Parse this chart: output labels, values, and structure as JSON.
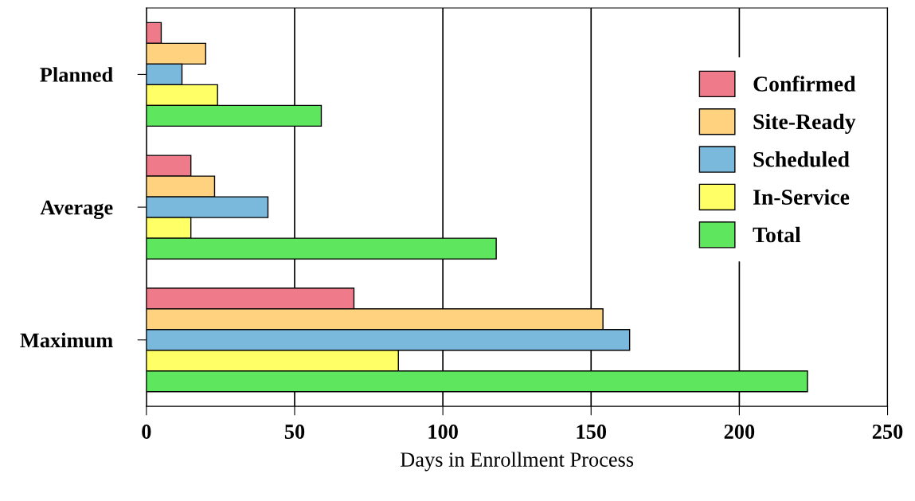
{
  "chart_data": {
    "type": "bar",
    "orientation": "horizontal",
    "xlabel": "Days in Enrollment Process",
    "categories": [
      "Planned",
      "Average",
      "Maximum"
    ],
    "series": [
      {
        "name": "Confirmed",
        "color": "#ee7a8a",
        "values": [
          5,
          15,
          70
        ]
      },
      {
        "name": "Site-Ready",
        "color": "#ffd280",
        "values": [
          20,
          23,
          154
        ]
      },
      {
        "name": "Scheduled",
        "color": "#7ab8dc",
        "values": [
          12,
          41,
          163
        ]
      },
      {
        "name": "In-Service",
        "color": "#ffff66",
        "values": [
          24,
          15,
          85
        ]
      },
      {
        "name": "Total",
        "color": "#5ee65e",
        "values": [
          59,
          118,
          223
        ]
      }
    ],
    "xlim": [
      0,
      250
    ],
    "xticks": [
      0,
      50,
      100,
      150,
      200,
      250
    ],
    "grid": "x",
    "legend": "right"
  }
}
